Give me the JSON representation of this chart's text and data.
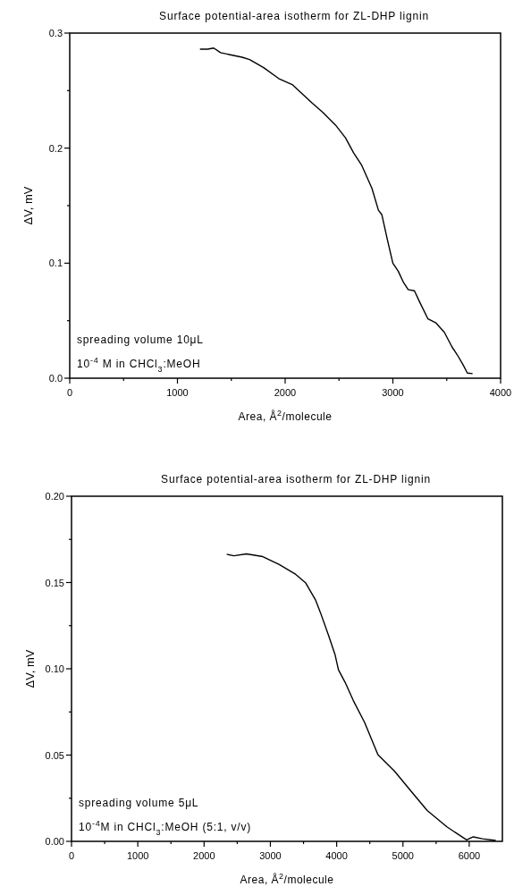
{
  "chart_data": [
    {
      "type": "line",
      "title": "Surface potential-area isotherm for ZL-DHP lignin",
      "xlabel": "Area, Å$^{2}$/molecule",
      "ylabel": "ΔV, mV",
      "annotations": [
        "spreading volume 10μL",
        "10$^{-4}$ M in CHCl$_{3}$:MeOH"
      ],
      "xlim": [
        0,
        4000
      ],
      "ylim": [
        0,
        0.3
      ],
      "xticks": [
        0,
        {
          "value": 500,
          "label": null
        },
        1000,
        {
          "value": 1500,
          "label": null
        },
        2000,
        {
          "value": 2500,
          "label": null
        },
        3000,
        {
          "value": 3500,
          "label": null
        },
        4000
      ],
      "yticks": [
        {
          "value": 0,
          "label": "0.0"
        },
        {
          "value": 0.05,
          "label": null
        },
        0.1,
        {
          "value": 0.15,
          "label": null
        },
        0.2,
        {
          "value": 0.25,
          "label": null
        },
        0.3
      ],
      "grid": false,
      "marker": "none",
      "line_style": "solid",
      "series": [
        {
          "color": "#000000",
          "x": [
            1209,
            1280,
            1337,
            1400,
            1500,
            1600,
            1670,
            1800,
            1948,
            2070,
            2150,
            2253,
            2350,
            2468,
            2560,
            2635,
            2711,
            2806,
            2866,
            2898,
            2950,
            3000,
            3050,
            3100,
            3142,
            3200,
            3250,
            3326,
            3400,
            3477,
            3550,
            3600,
            3650,
            3692,
            3740
          ],
          "values": [
            0.286,
            0.286,
            0.287,
            0.283,
            0.281,
            0.279,
            0.277,
            0.27,
            0.26,
            0.255,
            0.248,
            0.239,
            0.231,
            0.22,
            0.209,
            0.196,
            0.185,
            0.165,
            0.146,
            0.142,
            0.12,
            0.1,
            0.093,
            0.083,
            0.077,
            0.076,
            0.066,
            0.0515,
            0.048,
            0.04,
            0.027,
            0.02,
            0.012,
            0.0045,
            0.004
          ]
        }
      ]
    },
    {
      "type": "line",
      "title": "Surface potential-area isotherm for ZL-DHP lignin",
      "xlabel": "Area, Å$^{2}$/molecule",
      "ylabel": "ΔV, mV",
      "annotations": [
        "spreading volume 5μL",
        "10$^{-4}$M in CHCl$_{3}$:MeOH (5:1, v/v)"
      ],
      "xlim": [
        0,
        6500
      ],
      "ylim": [
        0,
        0.2
      ],
      "xticks": [
        0,
        {
          "value": 500,
          "label": null
        },
        1000,
        {
          "value": 1500,
          "label": null
        },
        2000,
        {
          "value": 2500,
          "label": null
        },
        3000,
        {
          "value": 3500,
          "label": null
        },
        4000,
        {
          "value": 4500,
          "label": null
        },
        5000,
        {
          "value": 5500,
          "label": null
        },
        6000
      ],
      "yticks": [
        {
          "value": 0,
          "label": "0.00"
        },
        {
          "value": 0.025,
          "label": null
        },
        {
          "value": 0.05,
          "label": "0.05"
        },
        {
          "value": 0.075,
          "label": null
        },
        {
          "value": 0.1,
          "label": "0.10"
        },
        {
          "value": 0.125,
          "label": null
        },
        {
          "value": 0.15,
          "label": "0.15"
        },
        {
          "value": 0.175,
          "label": null
        },
        {
          "value": 0.2,
          "label": "0.20"
        }
      ],
      "grid": false,
      "marker": "none",
      "line_style": "solid",
      "series": [
        {
          "color": "#000000",
          "x": [
            2341,
            2450,
            2638,
            2886,
            3134,
            3383,
            3530,
            3680,
            3754,
            3877,
            3977,
            4027,
            4127,
            4250,
            4423,
            4622,
            4870,
            5118,
            5366,
            5663,
            5961,
            6060,
            6200,
            6400
          ],
          "values": [
            0.1664,
            0.1655,
            0.1666,
            0.165,
            0.1604,
            0.1547,
            0.1499,
            0.14,
            0.1327,
            0.1194,
            0.108,
            0.0994,
            0.0922,
            0.0817,
            0.0688,
            0.0503,
            0.0408,
            0.0293,
            0.0179,
            0.0084,
            0.0008,
            0.0026,
            0.0015,
            0.0005
          ]
        }
      ]
    }
  ]
}
